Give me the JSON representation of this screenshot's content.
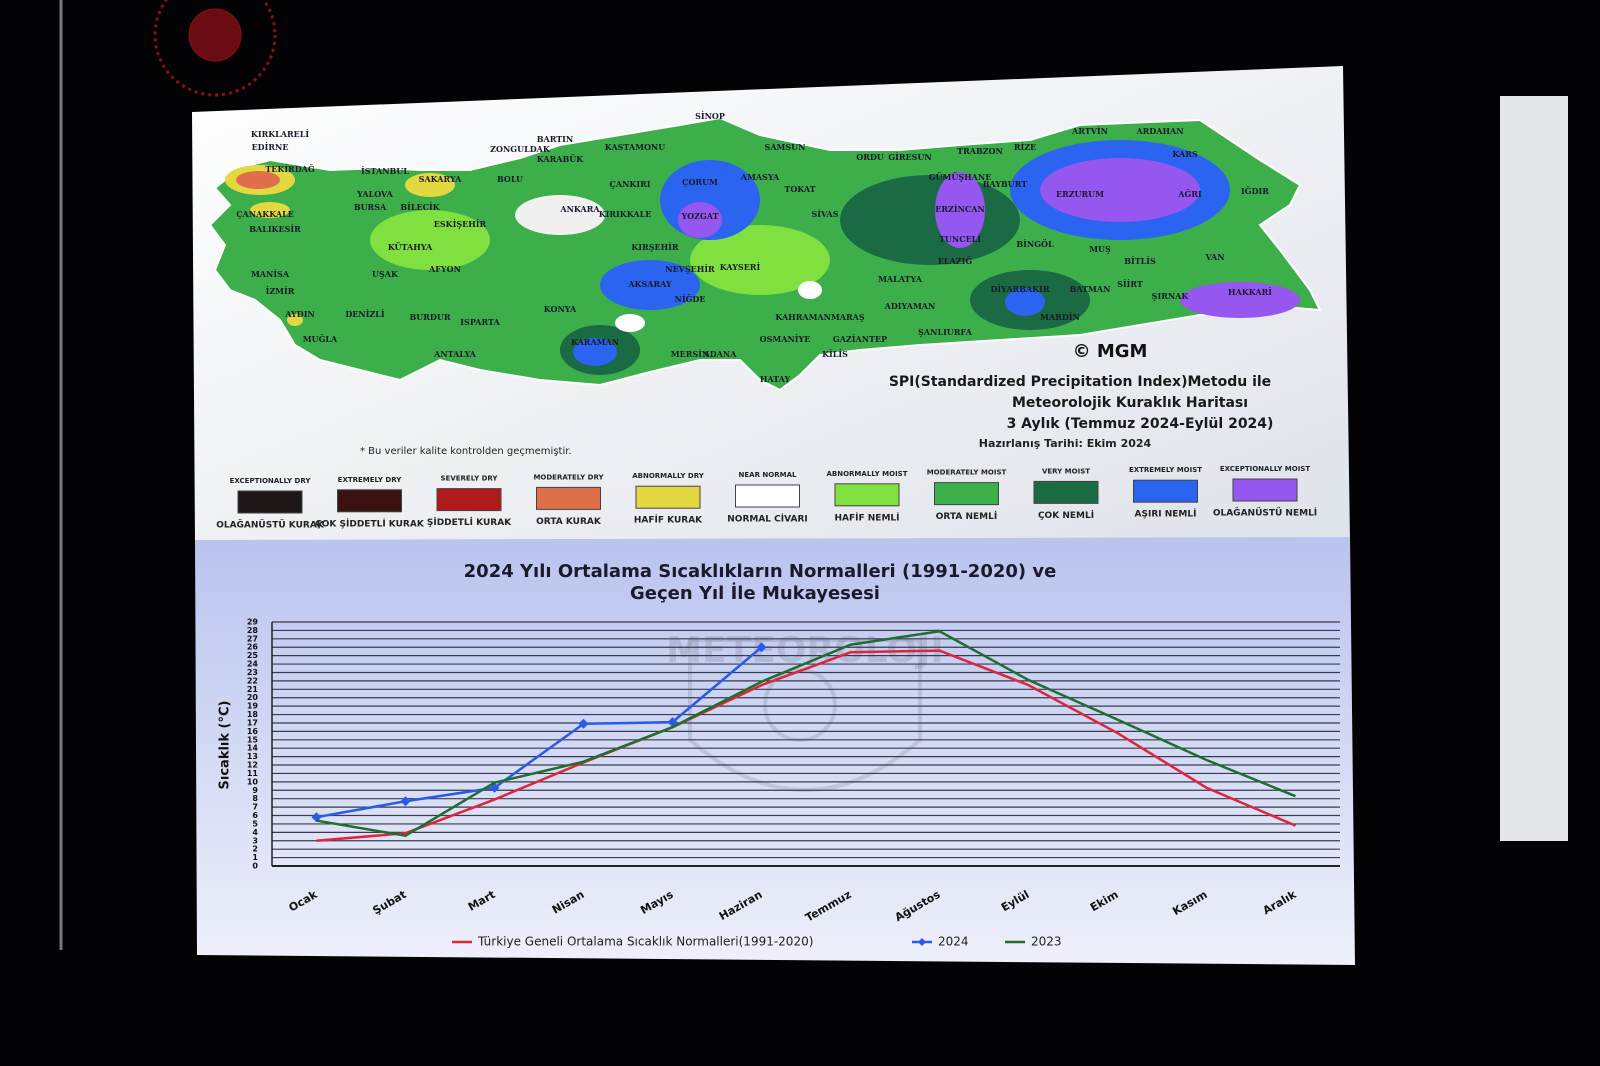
{
  "map": {
    "title_lines": [
      "SPI(Standardized Precipitation Index)Metodu ile",
      "Meteorolojik Kuraklık Haritası",
      "3 Aylık (Temmuz 2024-Eylül 2024)"
    ],
    "date": "Hazırlanış Tarihi: Ekim 2024",
    "credit": "© MGM",
    "note": "* Bu veriler kalite kontrolden geçmemiştir.",
    "cities": [
      "KIRKLARELİ",
      "EDİRNE",
      "TEKİRDAĞ",
      "İSTANBUL",
      "ÇANAKKALE",
      "BALIKESİR",
      "BARTIN",
      "ZONGULDAK",
      "KARABÜK",
      "KASTAMONU",
      "SİNOP",
      "SAMSUN",
      "ORDU",
      "GİRESUN",
      "TRABZON",
      "RİZE",
      "ARTVİN",
      "ARDAHAN",
      "KARS",
      "ERZURUM",
      "AĞRI",
      "IĞDIR",
      "SAKARYA",
      "BOLU",
      "YALOVA",
      "BURSA",
      "BİLECİK",
      "ESKİŞEHİR",
      "ANKARA",
      "KIRIKKALE",
      "ÇANKIRI",
      "ÇORUM",
      "AMASYA",
      "TOKAT",
      "YOZGAT",
      "SİVAS",
      "ERZİNCAN",
      "GÜMÜŞHANE",
      "BAYBURT",
      "TUNCELİ",
      "BİNGÖL",
      "MUŞ",
      "BİTLİS",
      "VAN",
      "KÜTAHYA",
      "MANİSA",
      "UŞAK",
      "AFYON",
      "KIRŞEHİR",
      "NEVŞEHİR",
      "KAYSERİ",
      "AKSARAY",
      "NİĞDE",
      "MALATYA",
      "ELAZIĞ",
      "İZMİR",
      "AYDIN",
      "DENİZLİ",
      "BURDUR",
      "ISPARTA",
      "KONYA",
      "KARAMAN",
      "ADIYAMAN",
      "DİYARBAKIR",
      "BATMAN",
      "SİİRT",
      "ŞIRNAK",
      "HAKKARİ",
      "MARDİN",
      "ŞANLIURFA",
      "KAHRAMANMARAŞ",
      "GAZİANTEP",
      "OSMANİYE",
      "ADANA",
      "MERSİN",
      "HATAY",
      "KİLİS",
      "MUĞLA",
      "ANTALYA"
    ],
    "legend": [
      {
        "en": "EXCEPTIONALLY DRY",
        "tr": "OLAĞANÜSTÜ KURAK",
        "color": "#1e1616"
      },
      {
        "en": "EXTREMELY DRY",
        "tr": "ÇOK ŞİDDETLİ KURAK",
        "color": "#3a1212"
      },
      {
        "en": "SEVERELY DRY",
        "tr": "ŞİDDETLİ KURAK",
        "color": "#b01a1a"
      },
      {
        "en": "MODERATELY DRY",
        "tr": "ORTA KURAK",
        "color": "#e0704a"
      },
      {
        "en": "ABNORMALLY DRY",
        "tr": "HAFİF KURAK",
        "color": "#e4d840"
      },
      {
        "en": "NEAR NORMAL",
        "tr": "NORMAL CİVARI",
        "color": "#ffffff"
      },
      {
        "en": "ABNORMALLY MOIST",
        "tr": "HAFİF NEMLİ",
        "color": "#80e040"
      },
      {
        "en": "MODERATELY MOIST",
        "tr": "ORTA NEMLİ",
        "color": "#3cae4a"
      },
      {
        "en": "VERY MOIST",
        "tr": "ÇOK NEMLİ",
        "color": "#1a6a44"
      },
      {
        "en": "EXTREMELY MOIST",
        "tr": "AŞIRI NEMLİ",
        "color": "#2a64f0"
      },
      {
        "en": "EXCEPTIONALLY MOIST",
        "tr": "OLAĞANÜSTÜ NEMLİ",
        "color": "#9656f0"
      }
    ]
  },
  "chart_data": {
    "type": "line",
    "title": [
      "2024 Yılı Ortalama Sıcaklıkların Normalleri (1991-2020) ve",
      "Geçen Yıl İle Mukayesesi"
    ],
    "watermark": "METEOROLOJİ",
    "y_label": "Sıcaklık (°C)",
    "categories": [
      "Ocak",
      "Şubat",
      "Mart",
      "Nisan",
      "Mayıs",
      "Haziran",
      "Temmuz",
      "Ağustos",
      "Eylül",
      "Ekim",
      "Kasım",
      "Aralık"
    ],
    "series": [
      {
        "name": "Türkiye Geneli Ortalama Sıcaklık Normalleri(1991-2020)",
        "color": "#e0243c",
        "values": [
          3.0,
          3.9,
          7.9,
          12.3,
          16.5,
          21.5,
          25.4,
          25.6,
          21.5,
          15.8,
          9.3,
          4.8
        ]
      },
      {
        "name": "2024",
        "color": "#2a5ae8",
        "marker": "diamond",
        "values": [
          5.8,
          7.7,
          9.3,
          16.9,
          17.1,
          26.0,
          null,
          null,
          null,
          null,
          null,
          null
        ]
      },
      {
        "name": "2023",
        "color": "#1f6e2e",
        "values": [
          5.4,
          3.6,
          9.9,
          12.4,
          16.5,
          21.9,
          26.3,
          27.9,
          22.1,
          17.4,
          12.6,
          8.3
        ]
      }
    ],
    "ylim": [
      0,
      29
    ],
    "yticks": [
      0,
      1,
      2,
      3,
      4,
      5,
      6,
      7,
      8,
      9,
      10,
      11,
      12,
      13,
      14,
      15,
      16,
      17,
      18,
      19,
      20,
      21,
      22,
      23,
      24,
      25,
      26,
      27,
      28,
      29
    ],
    "grid": true,
    "legend": "bottom"
  }
}
